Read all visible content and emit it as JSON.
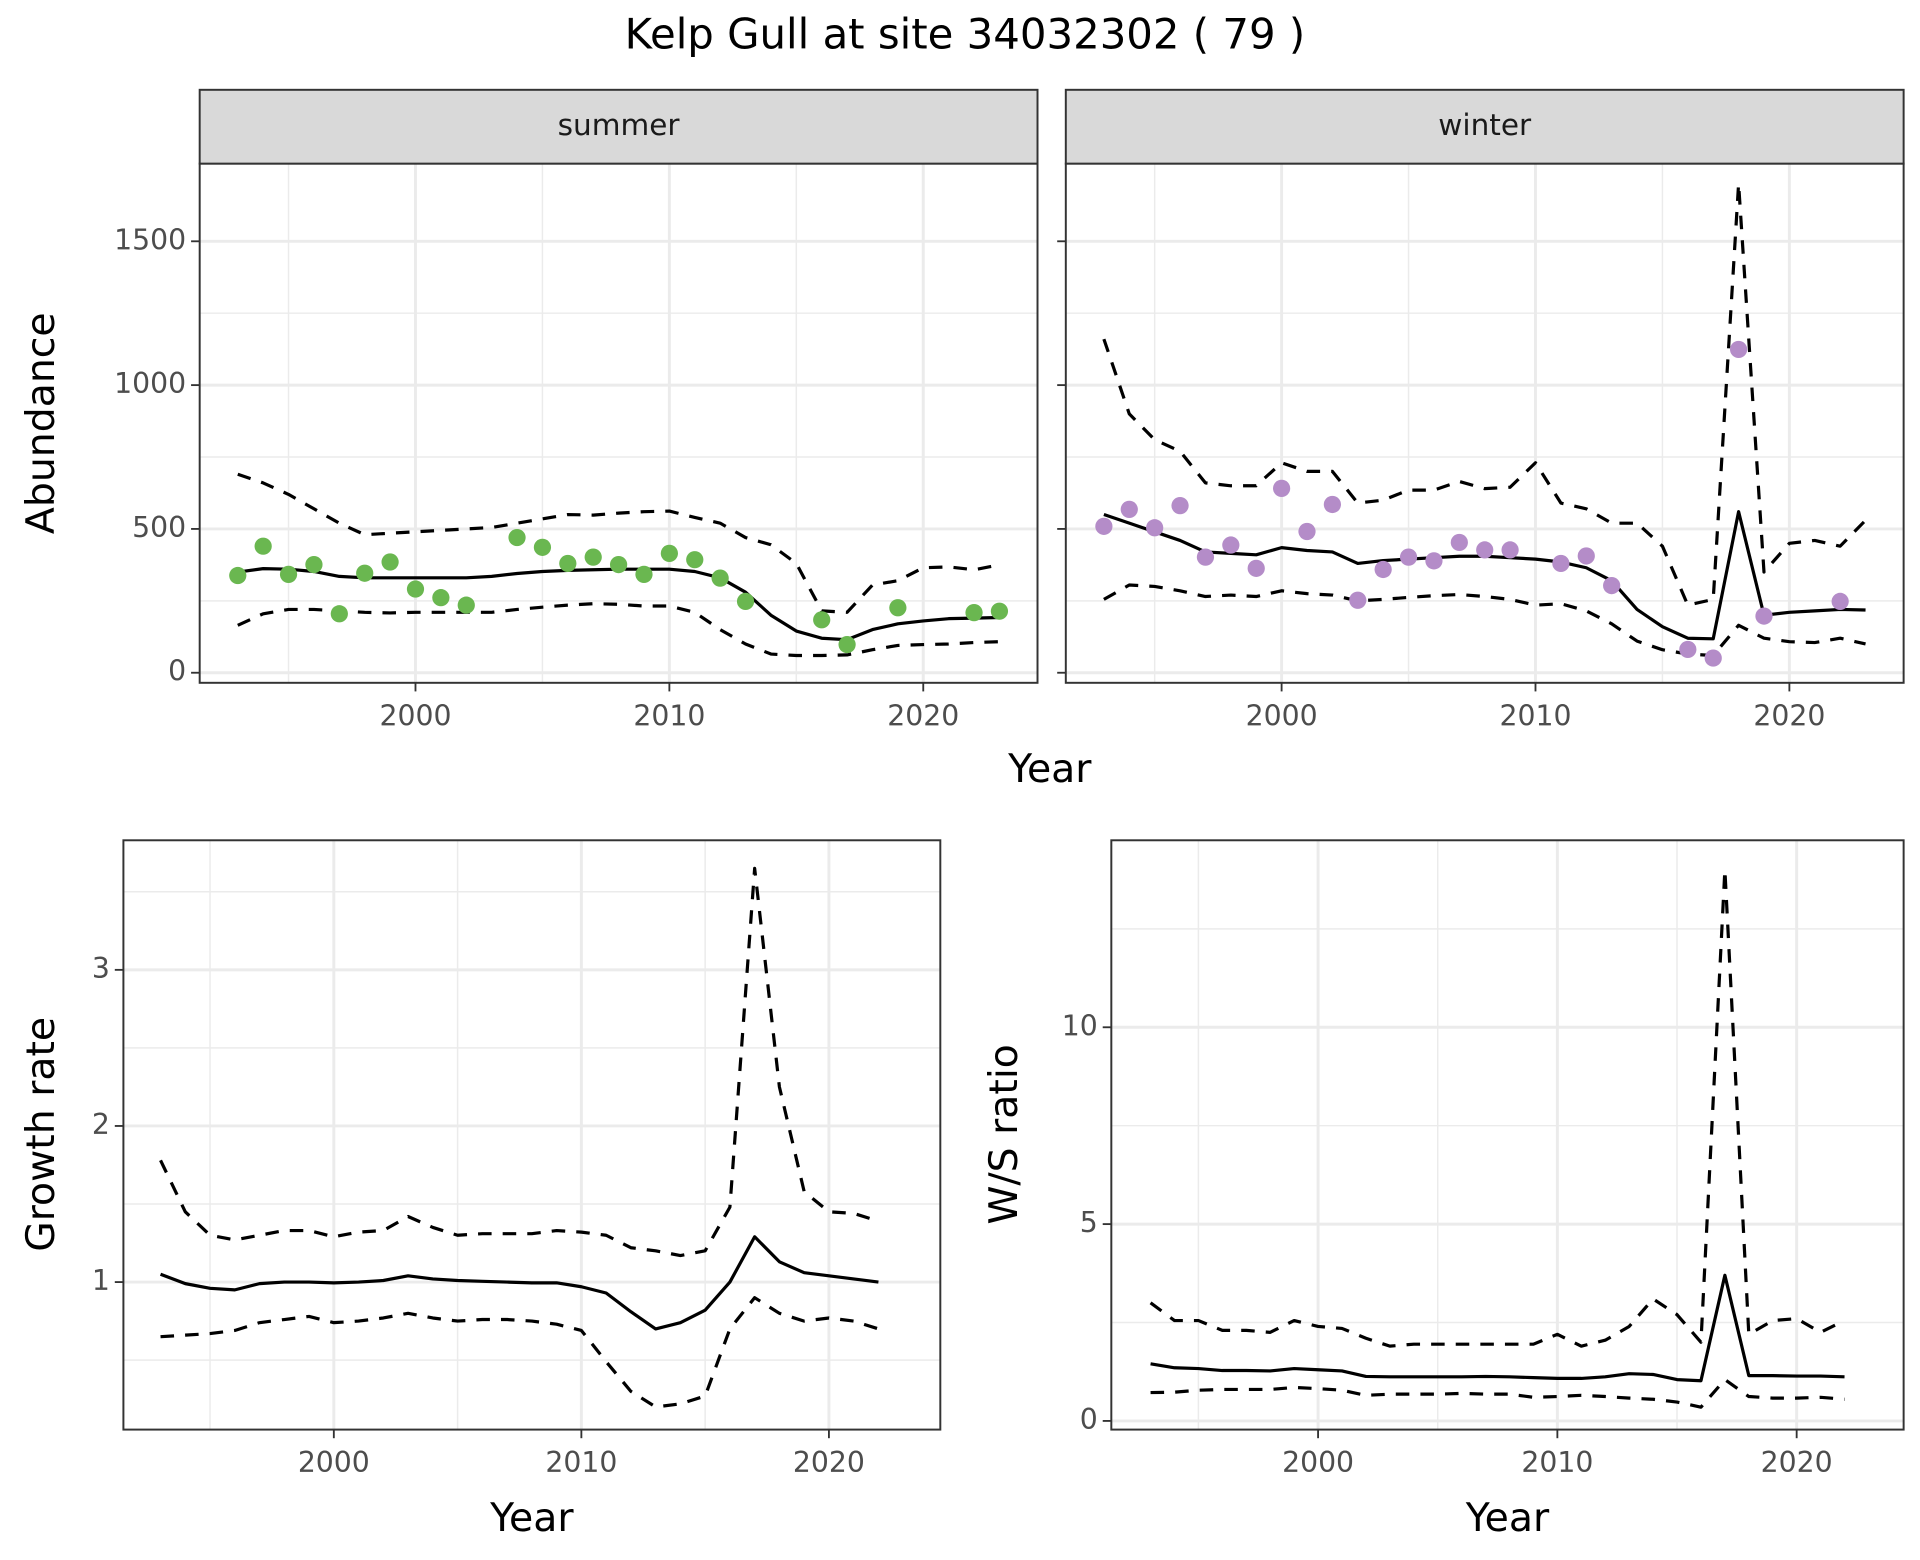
{
  "title": "Kelp Gull at site 34032302 ( 79 )",
  "chart_data": [
    {
      "type": "line",
      "title": "summer",
      "ylabel": "Abundance",
      "xlabel": "Year",
      "x": [
        1993,
        1994,
        1995,
        1996,
        1997,
        1998,
        1999,
        2000,
        2001,
        2002,
        2003,
        2004,
        2005,
        2006,
        2007,
        2008,
        2009,
        2010,
        2011,
        2012,
        2013,
        2014,
        2015,
        2016,
        2017,
        2018,
        2019,
        2020,
        2021,
        2022,
        2023
      ],
      "series": [
        {
          "style": "dashed",
          "color": "#000000",
          "values": [
            690,
            660,
            620,
            570,
            520,
            480,
            485,
            490,
            495,
            500,
            505,
            520,
            535,
            550,
            548,
            555,
            560,
            562,
            540,
            520,
            470,
            445,
            380,
            215,
            210,
            305,
            320,
            365,
            368,
            358,
            375
          ]
        },
        {
          "style": "dashed",
          "color": "#000000",
          "values": [
            165,
            205,
            220,
            220,
            215,
            210,
            208,
            210,
            210,
            210,
            210,
            220,
            228,
            235,
            240,
            238,
            232,
            232,
            210,
            150,
            100,
            65,
            60,
            60,
            62,
            80,
            95,
            98,
            100,
            105,
            108
          ]
        },
        {
          "style": "solid",
          "color": "#000000",
          "values": [
            350,
            362,
            360,
            352,
            335,
            330,
            330,
            330,
            330,
            330,
            335,
            345,
            352,
            356,
            358,
            360,
            360,
            360,
            352,
            330,
            280,
            200,
            145,
            120,
            115,
            150,
            170,
            180,
            188,
            190,
            192
          ]
        },
        {
          "style": "points",
          "color": "#6ab750",
          "values": [
            338,
            440,
            342,
            376,
            205,
            346,
            385,
            291,
            261,
            235,
            null,
            470,
            436,
            380,
            402,
            376,
            342,
            415,
            393,
            329,
            248,
            null,
            null,
            184,
            98,
            null,
            226,
            null,
            null,
            209,
            214
          ]
        }
      ],
      "xlim": [
        1991.5,
        2024.5
      ],
      "ylim": [
        -35,
        1770
      ],
      "xticks": [
        2000,
        2010,
        2020
      ],
      "yticks": [
        0,
        500,
        1000,
        1500
      ],
      "xminor": [
        1995,
        2005,
        2015
      ],
      "yminor": [
        250,
        750,
        1250
      ],
      "grid": true,
      "show_ytick_labels": true
    },
    {
      "type": "line",
      "title": "winter",
      "x": [
        1993,
        1994,
        1995,
        1996,
        1997,
        1998,
        1999,
        2000,
        2001,
        2002,
        2003,
        2004,
        2005,
        2006,
        2007,
        2008,
        2009,
        2010,
        2011,
        2012,
        2013,
        2014,
        2015,
        2016,
        2017,
        2018,
        2019,
        2020,
        2021,
        2022,
        2023
      ],
      "series": [
        {
          "style": "dashed",
          "color": "#000000",
          "values": [
            1160,
            900,
            810,
            770,
            660,
            650,
            650,
            730,
            700,
            700,
            590,
            600,
            635,
            635,
            665,
            640,
            645,
            730,
            590,
            570,
            520,
            520,
            440,
            235,
            255,
            1700,
            350,
            450,
            460,
            440,
            530
          ]
        },
        {
          "style": "dashed",
          "color": "#000000",
          "values": [
            255,
            305,
            300,
            285,
            265,
            270,
            265,
            285,
            275,
            270,
            250,
            255,
            262,
            268,
            272,
            265,
            255,
            235,
            240,
            215,
            170,
            110,
            80,
            65,
            60,
            165,
            120,
            108,
            105,
            120,
            100
          ]
        },
        {
          "style": "solid",
          "color": "#000000",
          "values": [
            550,
            520,
            490,
            460,
            420,
            415,
            410,
            435,
            425,
            420,
            380,
            390,
            395,
            400,
            405,
            405,
            400,
            395,
            385,
            365,
            320,
            220,
            160,
            120,
            118,
            560,
            200,
            210,
            215,
            220,
            218
          ]
        },
        {
          "style": "points",
          "color": "#b48cc8",
          "values": [
            509,
            568,
            504,
            581,
            402,
            444,
            363,
            641,
            491,
            585,
            252,
            359,
            402,
            389,
            453,
            427,
            427,
            null,
            380,
            406,
            303,
            null,
            null,
            81,
            51,
            1124,
            197,
            null,
            null,
            248,
            null
          ]
        }
      ],
      "xlim": [
        1991.5,
        2024.5
      ],
      "ylim": [
        -35,
        1770
      ],
      "xticks": [
        2000,
        2010,
        2020
      ],
      "yticks": [
        0,
        500,
        1000,
        1500
      ],
      "xminor": [
        1995,
        2005,
        2015
      ],
      "yminor": [
        250,
        750,
        1250
      ],
      "grid": true,
      "show_ytick_labels": false
    },
    {
      "type": "line",
      "ylabel": "Growth rate",
      "xlabel": "Year",
      "x": [
        1993,
        1994,
        1995,
        1996,
        1997,
        1998,
        1999,
        2000,
        2001,
        2002,
        2003,
        2004,
        2005,
        2006,
        2007,
        2008,
        2009,
        2010,
        2011,
        2012,
        2013,
        2014,
        2015,
        2016,
        2017,
        2018,
        2019,
        2020,
        2021,
        2022
      ],
      "series": [
        {
          "style": "dashed",
          "color": "#000000",
          "values": [
            1.78,
            1.45,
            1.3,
            1.27,
            1.3,
            1.33,
            1.33,
            1.29,
            1.32,
            1.33,
            1.42,
            1.35,
            1.3,
            1.31,
            1.31,
            1.31,
            1.33,
            1.32,
            1.3,
            1.22,
            1.2,
            1.17,
            1.2,
            1.48,
            3.65,
            2.25,
            1.58,
            1.45,
            1.44,
            1.39
          ]
        },
        {
          "style": "dashed",
          "color": "#000000",
          "values": [
            0.65,
            0.66,
            0.67,
            0.69,
            0.74,
            0.76,
            0.78,
            0.74,
            0.75,
            0.77,
            0.8,
            0.77,
            0.75,
            0.76,
            0.76,
            0.75,
            0.73,
            0.69,
            0.49,
            0.3,
            0.2,
            0.22,
            0.27,
            0.7,
            0.9,
            0.8,
            0.75,
            0.77,
            0.75,
            0.7
          ]
        },
        {
          "style": "solid",
          "color": "#000000",
          "values": [
            1.05,
            0.99,
            0.96,
            0.95,
            0.99,
            1.0,
            1.0,
            0.995,
            1.0,
            1.01,
            1.04,
            1.02,
            1.01,
            1.005,
            1.0,
            0.995,
            0.995,
            0.97,
            0.93,
            0.81,
            0.7,
            0.74,
            0.82,
            1.0,
            1.29,
            1.13,
            1.06,
            1.04,
            1.02,
            1.0
          ]
        }
      ],
      "xlim": [
        1991.5,
        2024.5
      ],
      "ylim": [
        0.055,
        3.83
      ],
      "xticks": [
        2000,
        2010,
        2020
      ],
      "yticks": [
        1,
        2,
        3
      ],
      "xminor": [
        1995,
        2005,
        2015
      ],
      "yminor": [
        0.5,
        1.5,
        2.5,
        3.5
      ],
      "grid": true,
      "show_ytick_labels": true
    },
    {
      "type": "line",
      "ylabel": "W/S ratio",
      "xlabel": "Year",
      "x": [
        1993,
        1994,
        1995,
        1996,
        1997,
        1998,
        1999,
        2000,
        2001,
        2002,
        2003,
        2004,
        2005,
        2006,
        2007,
        2008,
        2009,
        2010,
        2011,
        2012,
        2013,
        2014,
        2015,
        2016,
        2017,
        2018,
        2019,
        2020,
        2021,
        2022
      ],
      "series": [
        {
          "style": "dashed",
          "color": "#000000",
          "values": [
            3.0,
            2.55,
            2.55,
            2.3,
            2.3,
            2.25,
            2.55,
            2.4,
            2.35,
            2.1,
            1.9,
            1.95,
            1.95,
            1.95,
            1.95,
            1.95,
            1.95,
            2.2,
            1.9,
            2.05,
            2.4,
            3.1,
            2.7,
            2.0,
            14.0,
            2.2,
            2.55,
            2.6,
            2.25,
            2.55
          ]
        },
        {
          "style": "dashed",
          "color": "#000000",
          "values": [
            0.72,
            0.73,
            0.78,
            0.8,
            0.8,
            0.8,
            0.85,
            0.82,
            0.78,
            0.65,
            0.68,
            0.68,
            0.68,
            0.7,
            0.68,
            0.68,
            0.6,
            0.62,
            0.65,
            0.62,
            0.58,
            0.55,
            0.48,
            0.35,
            1.05,
            0.62,
            0.58,
            0.58,
            0.6,
            0.55
          ]
        },
        {
          "style": "solid",
          "color": "#000000",
          "values": [
            1.45,
            1.35,
            1.33,
            1.28,
            1.28,
            1.27,
            1.33,
            1.3,
            1.27,
            1.13,
            1.12,
            1.12,
            1.12,
            1.12,
            1.13,
            1.12,
            1.1,
            1.08,
            1.08,
            1.12,
            1.2,
            1.18,
            1.05,
            1.02,
            3.7,
            1.15,
            1.15,
            1.14,
            1.14,
            1.12
          ]
        }
      ],
      "xlim": [
        1991.36,
        2024.47
      ],
      "ylim": [
        -0.22,
        14.75
      ],
      "xticks": [
        2000,
        2010,
        2020
      ],
      "yticks": [
        0,
        5,
        10
      ],
      "xminor": [
        1995,
        2005,
        2015
      ],
      "yminor": [
        2.5,
        7.5,
        12.5
      ],
      "grid": true,
      "show_ytick_labels": true
    }
  ]
}
